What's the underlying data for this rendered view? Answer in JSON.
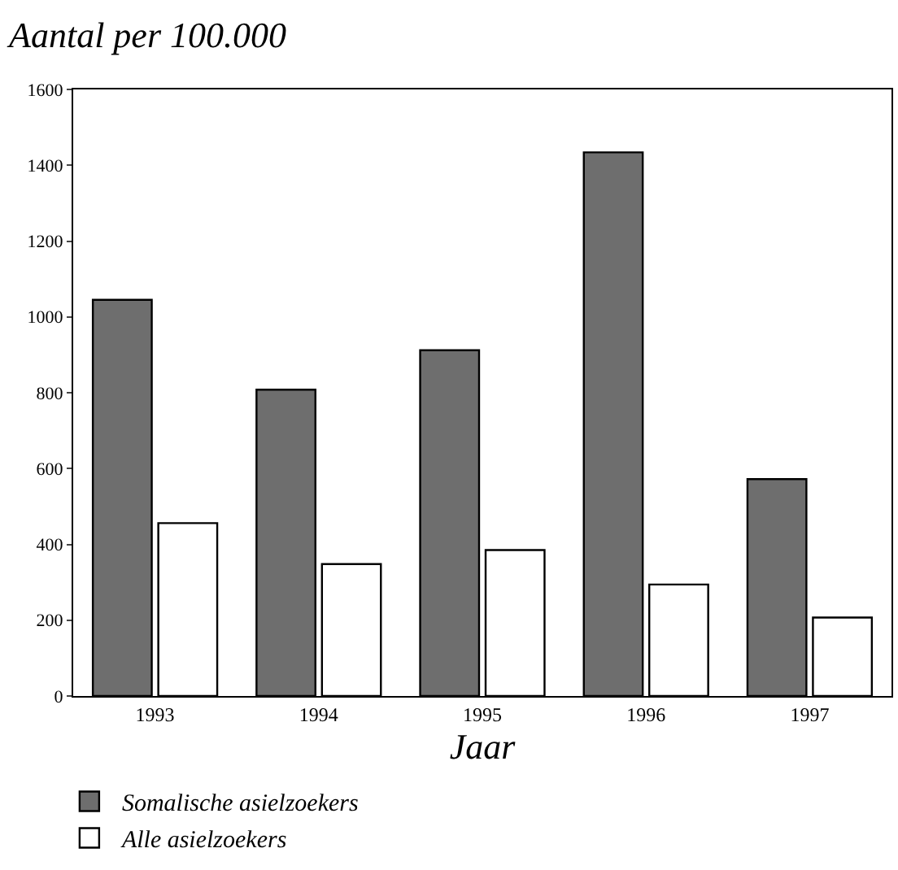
{
  "chart_data": {
    "type": "bar",
    "title": "Aantal per 100.000",
    "xlabel": "Jaar",
    "categories": [
      "1993",
      "1994",
      "1995",
      "1996",
      "1997"
    ],
    "series": [
      {
        "name": "Somalische asielzoekers",
        "color": "#6e6e6e",
        "values": [
          1045,
          808,
          912,
          1434,
          572
        ]
      },
      {
        "name": "Alle asielzoekers",
        "color": "#ffffff",
        "values": [
          456,
          348,
          385,
          294,
          207
        ]
      }
    ],
    "ylim": [
      0,
      1600
    ],
    "yticks": [
      0,
      200,
      400,
      600,
      800,
      1000,
      1200,
      1400,
      1600
    ],
    "legend": "bottom left"
  }
}
